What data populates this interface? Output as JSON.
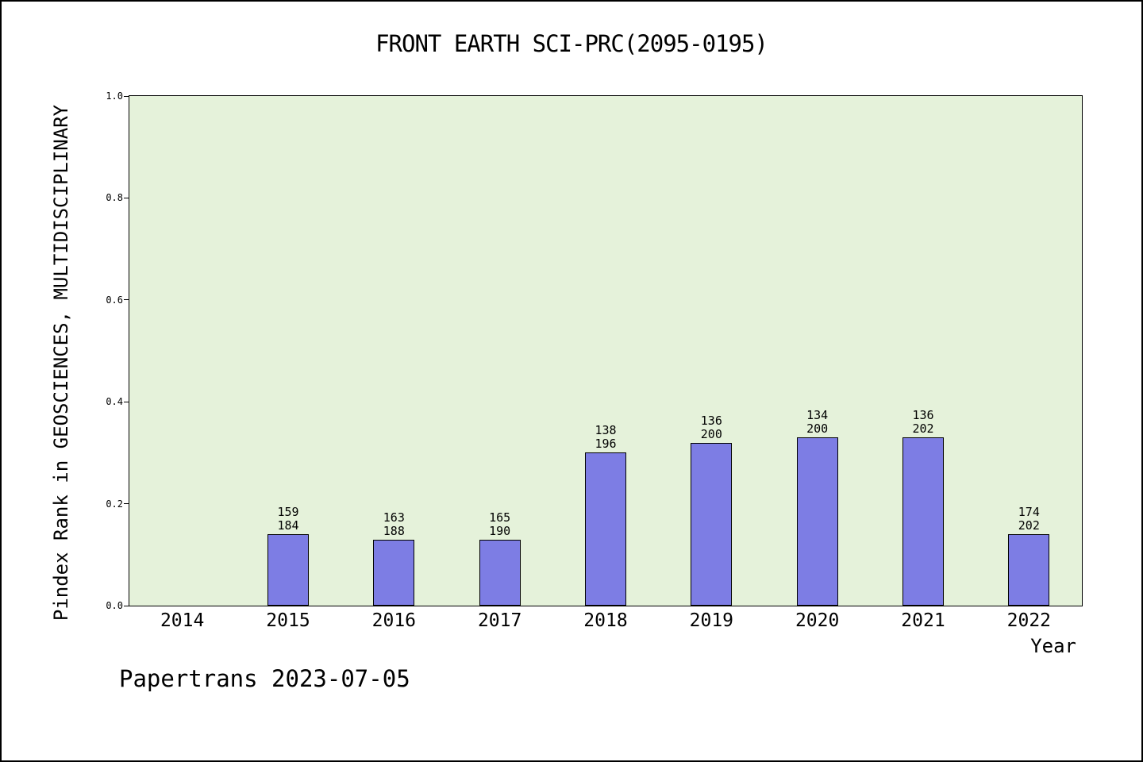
{
  "colors": {
    "plot_bg": "#e5f2da",
    "bar_fill": "#7d7de4",
    "bar_edge": "#000000",
    "text": "#000000"
  },
  "chart_data": {
    "type": "bar",
    "title": "FRONT EARTH SCI-PRC(2095-0195)",
    "xlabel": "Year",
    "ylabel": "Pindex Rank in GEOSCIENCES, MULTIDISCIPLINARY",
    "ylim": [
      0.0,
      1.0
    ],
    "yticks": [
      "0.0",
      "0.2",
      "0.4",
      "0.6",
      "0.8",
      "1.0"
    ],
    "grid": false,
    "legend": false,
    "categories": [
      "2014",
      "2015",
      "2016",
      "2017",
      "2018",
      "2019",
      "2020",
      "2021",
      "2022"
    ],
    "values": [
      null,
      0.14,
      0.13,
      0.13,
      0.3,
      0.32,
      0.33,
      0.33,
      0.14
    ],
    "ranks": [
      null,
      "159",
      "163",
      "165",
      "138",
      "136",
      "134",
      "136",
      "174"
    ],
    "totals": [
      null,
      "184",
      "188",
      "190",
      "196",
      "200",
      "200",
      "202",
      "202"
    ],
    "annotation": "Papertrans 2023-07-05"
  }
}
